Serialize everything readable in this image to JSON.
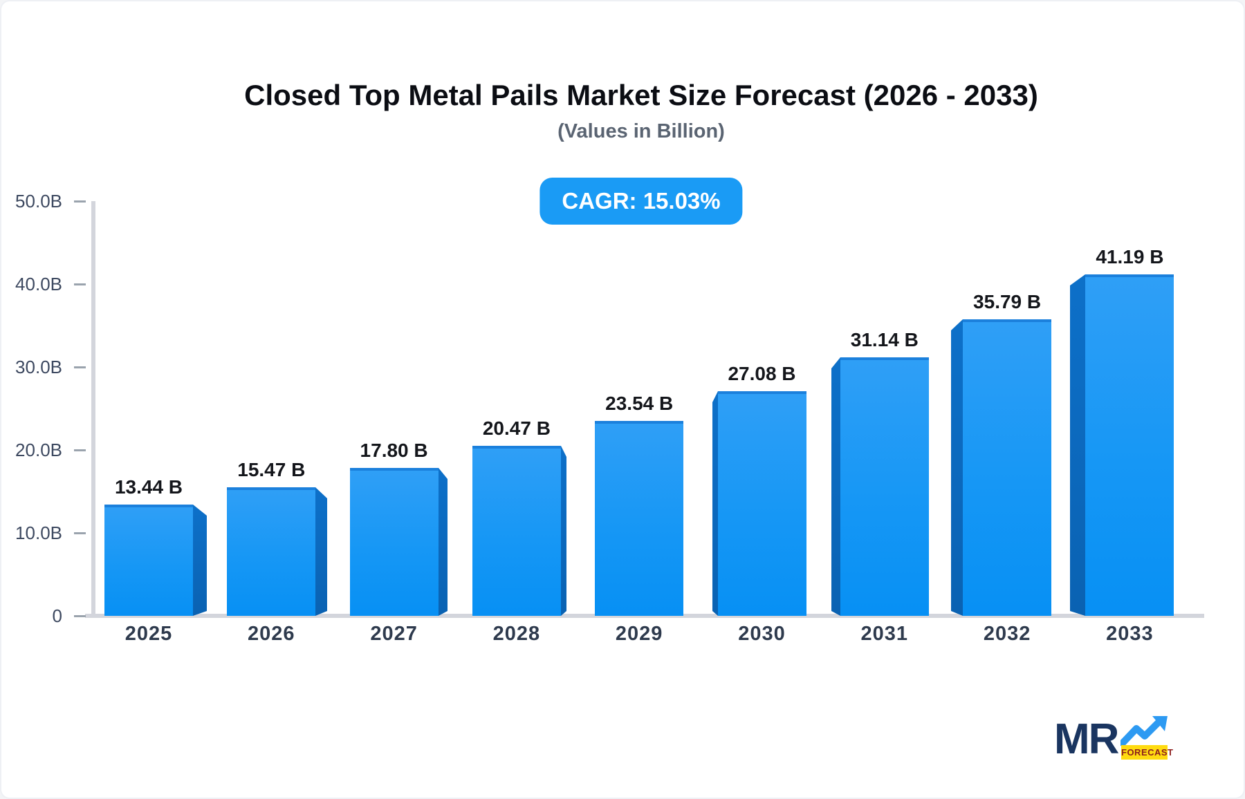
{
  "header": {
    "title": "Closed Top Metal Pails Market Size Forecast (2026 - 2033)",
    "subtitle": "(Values in Billion)",
    "cagr_label": "CAGR: 15.03%"
  },
  "chart_data": {
    "type": "bar",
    "title": "Closed Top Metal Pails Market Size Forecast (2026 - 2033)",
    "subtitle": "(Values in Billion)",
    "categories": [
      "2025",
      "2026",
      "2027",
      "2028",
      "2029",
      "2030",
      "2031",
      "2032",
      "2033"
    ],
    "values": [
      13.44,
      15.47,
      17.8,
      20.47,
      23.54,
      27.08,
      31.14,
      35.79,
      41.19
    ],
    "value_labels": [
      "13.44 B",
      "15.47 B",
      "17.80 B",
      "20.47 B",
      "23.54 B",
      "27.08 B",
      "31.14 B",
      "35.79 B",
      "41.19 B"
    ],
    "y_tick_labels": [
      "50.0B",
      "40.0B",
      "30.0B",
      "20.0B",
      "10.0B",
      "0"
    ],
    "ylim": [
      0,
      50
    ],
    "xlabel": "",
    "ylabel": "",
    "grid": "off",
    "legend": "none",
    "cagr": "15.03%",
    "bar_style": "3d-perspective",
    "colors": {
      "bar_face_top": "#2f9ff6",
      "bar_face_bottom": "#0790f4",
      "bar_side": "#0a65b8",
      "bar_top_edge": "#1b80dc",
      "axis_line": "#d3d5dc",
      "tick_dash": "#9aa3ad",
      "badge_bg": "#1a9bf5",
      "badge_text": "#ffffff"
    }
  },
  "logo": {
    "text": "MR",
    "tag": "FORECAST",
    "arrow_icon": "trend-up-arrow-icon",
    "colors": {
      "navy": "#1a3560",
      "arrow_blue": "#2d9af2",
      "tag_bg": "#ffdb10",
      "tag_text": "#8c1d1d"
    }
  }
}
